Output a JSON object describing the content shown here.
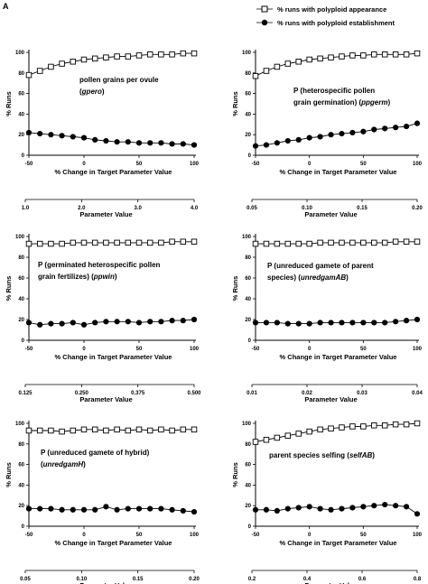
{
  "figure_label": "A",
  "legend": {
    "appearance": "% runs with polyploid appearance",
    "establishment": "% runs with polyploid establishment"
  },
  "chart_data": [
    {
      "type": "line",
      "annotation": [
        "pollen grains per ovule",
        "(gpero)"
      ],
      "xlabel": "% Change in Target Parameter Value",
      "ylabel": "% Runs",
      "x": [
        -50,
        -45,
        -40,
        -35,
        -30,
        -25,
        -20,
        -15,
        -10,
        -5,
        0,
        5,
        10,
        15,
        20,
        25,
        30,
        35,
        40,
        45,
        50,
        55,
        60,
        65,
        70,
        75,
        80,
        85,
        90,
        95,
        100
      ],
      "xlim": [
        -50,
        100
      ],
      "ylim": [
        0,
        100
      ],
      "xticks": [
        -50,
        0,
        50,
        100
      ],
      "yticks": [
        0,
        20,
        40,
        60,
        80,
        100
      ],
      "series": [
        {
          "name": "% runs with polyploid appearance",
          "marker": "open-square",
          "values": [
            78,
            null,
            82,
            null,
            86,
            null,
            89,
            null,
            91,
            null,
            93,
            null,
            94,
            null,
            95,
            null,
            96,
            null,
            96,
            null,
            97,
            null,
            98,
            null,
            98,
            null,
            98,
            null,
            99,
            null,
            99
          ]
        },
        {
          "name": "% runs with polyploid establishment",
          "marker": "filled-circle",
          "values": [
            22,
            null,
            21,
            null,
            20,
            null,
            19,
            null,
            18,
            null,
            17,
            null,
            15,
            null,
            14,
            null,
            13,
            null,
            13,
            null,
            12,
            null,
            12,
            null,
            12,
            null,
            11,
            null,
            11,
            null,
            10
          ]
        }
      ],
      "param_axis": {
        "label": "Parameter Value",
        "range": [
          1.0,
          4.0
        ],
        "ticks": [
          "1.0",
          "2.0",
          "3.0",
          "4.0"
        ]
      }
    },
    {
      "type": "line",
      "annotation": [
        "P (heterospecific pollen",
        "grain germination) (ppgerm)"
      ],
      "xlabel": "% Change in Target Parameter Value",
      "ylabel": "% Runs",
      "x": [
        -50,
        -45,
        -40,
        -35,
        -30,
        -25,
        -20,
        -15,
        -10,
        -5,
        0,
        5,
        10,
        15,
        20,
        25,
        30,
        35,
        40,
        45,
        50,
        55,
        60,
        65,
        70,
        75,
        80,
        85,
        90,
        95,
        100
      ],
      "xlim": [
        -50,
        100
      ],
      "ylim": [
        0,
        100
      ],
      "xticks": [
        -50,
        0,
        50,
        100
      ],
      "yticks": [
        0,
        20,
        40,
        60,
        80,
        100
      ],
      "series": [
        {
          "name": "% runs with polyploid appearance",
          "marker": "open-square",
          "values": [
            77,
            null,
            82,
            null,
            86,
            null,
            89,
            null,
            91,
            null,
            93,
            null,
            94,
            null,
            95,
            null,
            96,
            null,
            97,
            null,
            97,
            null,
            98,
            null,
            98,
            null,
            98,
            null,
            98,
            null,
            99
          ]
        },
        {
          "name": "% runs with polyploid establishment",
          "marker": "filled-circle",
          "values": [
            9,
            null,
            10,
            null,
            12,
            null,
            14,
            null,
            15,
            null,
            17,
            null,
            18,
            null,
            20,
            null,
            21,
            null,
            22,
            null,
            23,
            null,
            25,
            null,
            26,
            null,
            27,
            null,
            28,
            null,
            31
          ]
        }
      ],
      "param_axis": {
        "label": "Parameter Value",
        "range": [
          0.05,
          0.2
        ],
        "ticks": [
          "0.05",
          "0.10",
          "0.15",
          "0.20"
        ]
      }
    },
    {
      "type": "line",
      "annotation": [
        "P (germinated heterospecific pollen",
        "grain fertilizes) (ppwin)"
      ],
      "xlabel": "% Change in Target Parameter Value",
      "ylabel": "% Runs",
      "x": [
        -50,
        -45,
        -40,
        -35,
        -30,
        -25,
        -20,
        -15,
        -10,
        -5,
        0,
        5,
        10,
        15,
        20,
        25,
        30,
        35,
        40,
        45,
        50,
        55,
        60,
        65,
        70,
        75,
        80,
        85,
        90,
        95,
        100
      ],
      "xlim": [
        -50,
        100
      ],
      "ylim": [
        0,
        100
      ],
      "xticks": [
        -50,
        0,
        50,
        100
      ],
      "yticks": [
        0,
        20,
        40,
        60,
        80,
        100
      ],
      "series": [
        {
          "name": "% runs with polyploid appearance",
          "marker": "open-square",
          "values": [
            93,
            null,
            93,
            null,
            93,
            null,
            93,
            null,
            94,
            null,
            94,
            null,
            94,
            null,
            94,
            null,
            94,
            null,
            94,
            null,
            94,
            null,
            94,
            null,
            94,
            null,
            95,
            null,
            95,
            null,
            95
          ]
        },
        {
          "name": "% runs with polyploid establishment",
          "marker": "filled-circle",
          "values": [
            17,
            null,
            15,
            null,
            16,
            null,
            16,
            null,
            17,
            null,
            15,
            null,
            17,
            null,
            18,
            null,
            18,
            null,
            18,
            null,
            17,
            null,
            18,
            null,
            18,
            null,
            19,
            null,
            19,
            null,
            20
          ]
        }
      ],
      "param_axis": {
        "label": "Parameter Value",
        "range": [
          0.125,
          0.5
        ],
        "ticks": [
          "0.125",
          "0.250",
          "0.375",
          "0.500"
        ]
      }
    },
    {
      "type": "line",
      "annotation": [
        "P (unreduced gamete of parent",
        "species) (unredgamAB)"
      ],
      "xlabel": "% Change in Target Parameter Value",
      "ylabel": "% Runs",
      "x": [
        -50,
        -45,
        -40,
        -35,
        -30,
        -25,
        -20,
        -15,
        -10,
        -5,
        0,
        5,
        10,
        15,
        20,
        25,
        30,
        35,
        40,
        45,
        50,
        55,
        60,
        65,
        70,
        75,
        80,
        85,
        90,
        95,
        100
      ],
      "xlim": [
        -50,
        100
      ],
      "ylim": [
        0,
        100
      ],
      "xticks": [
        -50,
        0,
        50,
        100
      ],
      "yticks": [
        0,
        20,
        40,
        60,
        80,
        100
      ],
      "series": [
        {
          "name": "% runs with polyploid appearance",
          "marker": "open-square",
          "values": [
            93,
            null,
            93,
            null,
            93,
            null,
            93,
            null,
            93,
            null,
            93,
            null,
            94,
            null,
            94,
            null,
            94,
            null,
            94,
            null,
            94,
            null,
            94,
            null,
            94,
            null,
            95,
            null,
            95,
            null,
            95
          ]
        },
        {
          "name": "% runs with polyploid establishment",
          "marker": "filled-circle",
          "values": [
            17,
            null,
            17,
            null,
            17,
            null,
            16,
            null,
            16,
            null,
            16,
            null,
            17,
            null,
            17,
            null,
            17,
            null,
            17,
            null,
            17,
            null,
            17,
            null,
            17,
            null,
            18,
            null,
            19,
            null,
            20
          ]
        }
      ],
      "param_axis": {
        "label": "Parameter Value",
        "range": [
          0.01,
          0.04
        ],
        "ticks": [
          "0.01",
          "0.02",
          "0.03",
          "0.04"
        ]
      }
    },
    {
      "type": "line",
      "annotation": [
        "P (unreduced gamete of hybrid)",
        "(unredgamH)"
      ],
      "xlabel": "% Change in Target Parameter Value",
      "ylabel": "% Runs",
      "x": [
        -50,
        -45,
        -40,
        -35,
        -30,
        -25,
        -20,
        -15,
        -10,
        -5,
        0,
        5,
        10,
        15,
        20,
        25,
        30,
        35,
        40,
        45,
        50,
        55,
        60,
        65,
        70,
        75,
        80,
        85,
        90,
        95,
        100
      ],
      "xlim": [
        -50,
        100
      ],
      "ylim": [
        0,
        100
      ],
      "xticks": [
        -50,
        0,
        50,
        100
      ],
      "yticks": [
        0,
        20,
        40,
        60,
        80,
        100
      ],
      "series": [
        {
          "name": "% runs with polyploid appearance",
          "marker": "open-square",
          "values": [
            93,
            null,
            93,
            null,
            93,
            null,
            92,
            null,
            93,
            null,
            94,
            null,
            94,
            null,
            93,
            null,
            94,
            null,
            93,
            null,
            94,
            null,
            93,
            null,
            94,
            null,
            93,
            null,
            94,
            null,
            94
          ]
        },
        {
          "name": "% runs with polyploid establishment",
          "marker": "filled-circle",
          "values": [
            17,
            null,
            17,
            null,
            17,
            null,
            16,
            null,
            16,
            null,
            16,
            null,
            16,
            null,
            19,
            null,
            16,
            null,
            17,
            null,
            17,
            null,
            17,
            null,
            17,
            null,
            16,
            null,
            15,
            null,
            14
          ]
        }
      ],
      "param_axis": {
        "label": "Parameter Value",
        "range": [
          0.05,
          0.2
        ],
        "ticks": [
          "0.05",
          "0.10",
          "0.15",
          "0.20"
        ]
      }
    },
    {
      "type": "line",
      "annotation": [
        "parent species selfing (selfAB)"
      ],
      "xlabel": "% Change in Target Parameter Value",
      "ylabel": "% Runs",
      "x": [
        -50,
        -45,
        -40,
        -35,
        -30,
        -25,
        -20,
        -15,
        -10,
        -5,
        0,
        5,
        10,
        15,
        20,
        25,
        30,
        35,
        40,
        45,
        50,
        55,
        60,
        65,
        70,
        75,
        80,
        85,
        90,
        95,
        100
      ],
      "xlim": [
        -50,
        100
      ],
      "ylim": [
        0,
        100
      ],
      "xticks": [
        -50,
        0,
        50,
        100
      ],
      "yticks": [
        0,
        20,
        40,
        60,
        80,
        100
      ],
      "series": [
        {
          "name": "% runs with polyploid appearance",
          "marker": "open-square",
          "values": [
            82,
            null,
            84,
            null,
            86,
            null,
            88,
            null,
            90,
            null,
            92,
            null,
            94,
            null,
            95,
            null,
            96,
            null,
            97,
            null,
            97,
            null,
            98,
            null,
            98,
            null,
            99,
            null,
            99,
            null,
            100
          ]
        },
        {
          "name": "% runs with polyploid establishment",
          "marker": "filled-circle",
          "values": [
            16,
            null,
            16,
            null,
            15,
            null,
            17,
            null,
            18,
            null,
            19,
            null,
            17,
            null,
            16,
            null,
            17,
            null,
            18,
            null,
            19,
            null,
            20,
            null,
            21,
            null,
            20,
            null,
            19,
            null,
            12
          ]
        }
      ],
      "param_axis": {
        "label": "Parameter Value",
        "range": [
          0.2,
          0.8
        ],
        "ticks": [
          "0.2",
          "0.4",
          "0.6",
          "0.8"
        ]
      }
    }
  ]
}
